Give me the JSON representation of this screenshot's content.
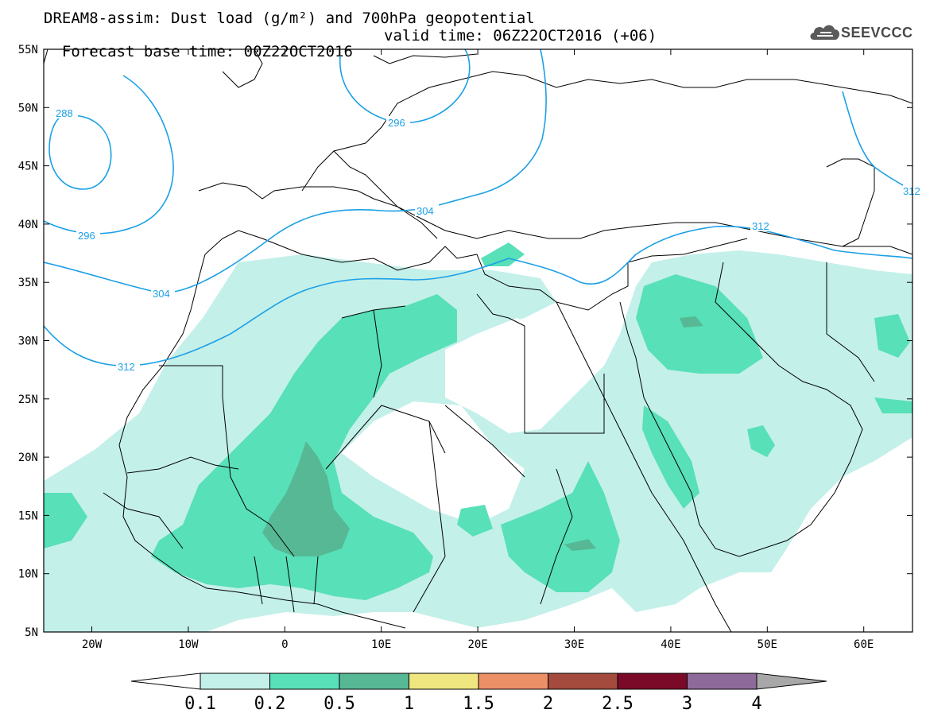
{
  "title": {
    "line1": "DREAM8-assim: Dust load (g/m²) and 700hPa geopotential",
    "line2_base": "Forecast base time: 00Z22OCT2016",
    "line2_valid": "valid time: 06Z22OCT2016 (+06)"
  },
  "logo": {
    "text": "SEEVCCC",
    "icon": "cloud-icon"
  },
  "map": {
    "lat_labels": [
      "55N",
      "50N",
      "45N",
      "40N",
      "35N",
      "30N",
      "25N",
      "20N",
      "15N",
      "10N",
      "5N"
    ],
    "lon_labels": [
      "20W",
      "10W",
      "0",
      "10E",
      "20E",
      "30E",
      "40E",
      "50E",
      "60E"
    ],
    "contour_labels": [
      "288",
      "296",
      "296",
      "304",
      "304",
      "312",
      "312",
      "312"
    ],
    "contour_color": "#1ca0e6",
    "land_outline_color": "#000000"
  },
  "legend": {
    "labels": [
      "0.1",
      "0.2",
      "0.5",
      "1",
      "1.5",
      "2",
      "2.5",
      "3",
      "4"
    ],
    "colors": [
      "#ffffff",
      "#c4f0ea",
      "#58e0b8",
      "#56b894",
      "#f0e680",
      "#ec9068",
      "#a44b3e",
      "#7a0a28",
      "#8e6a9a",
      "#a8a8a8"
    ]
  },
  "dust": {
    "colors": {
      "light": "#c4f0ea",
      "medium": "#58e0b8",
      "dark": "#56b894",
      "darker": "#4e8a76"
    }
  }
}
